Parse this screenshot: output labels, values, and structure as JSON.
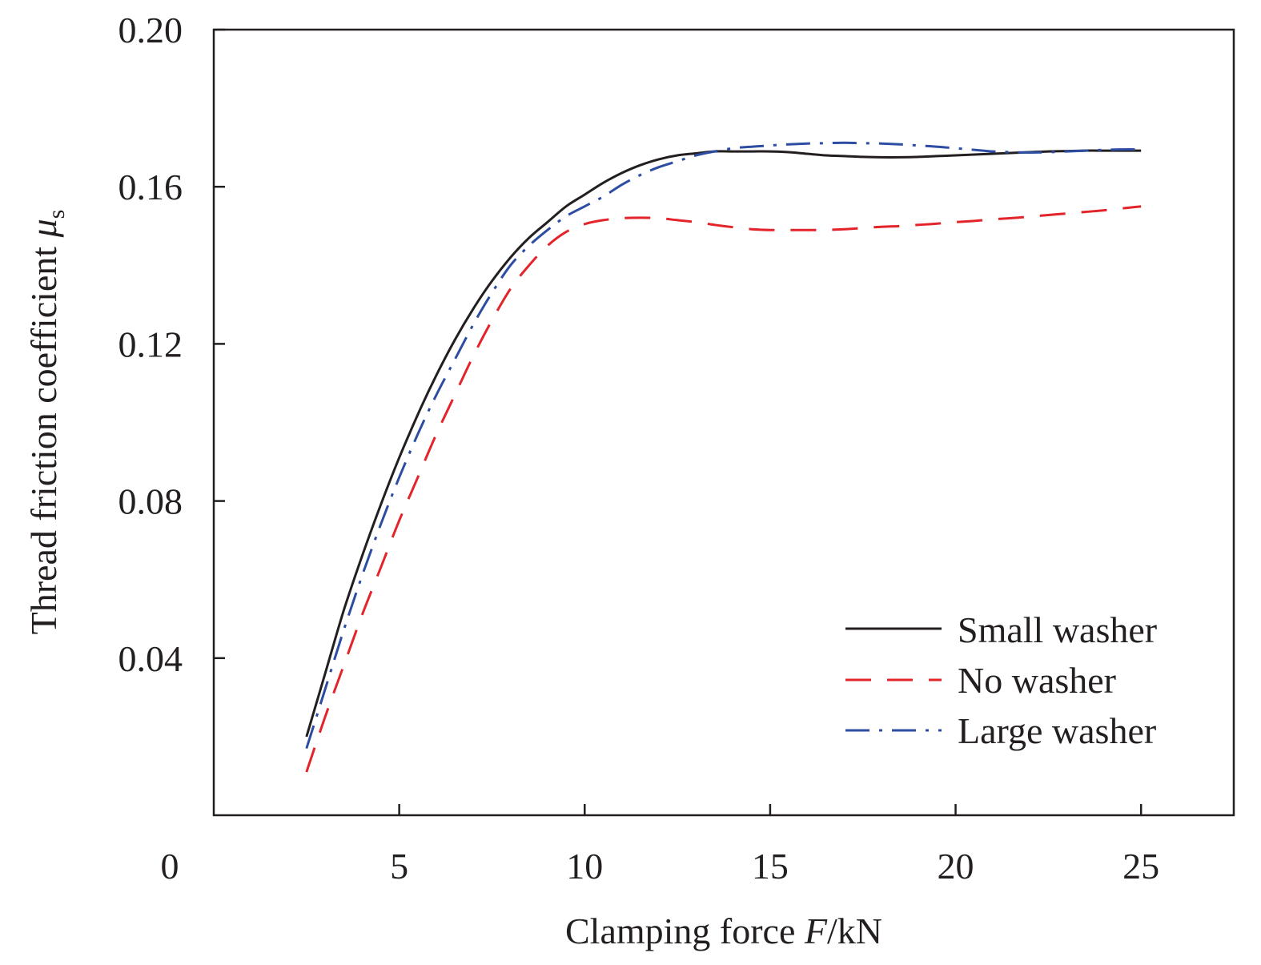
{
  "chart_data": {
    "type": "line",
    "xlabel": {
      "prefix": "Clamping force ",
      "var": "F",
      "unit": "/kN"
    },
    "ylabel": {
      "prefix": "Thread friction coefficient ",
      "var": "μ",
      "sub": "s"
    },
    "xlim": [
      0,
      27.5
    ],
    "ylim": [
      0,
      0.2
    ],
    "xticks": [
      5,
      10,
      15,
      20,
      25
    ],
    "xtick_labels": [
      "5",
      "10",
      "15",
      "20",
      "25"
    ],
    "origin_label": "0",
    "yticks": [
      0.04,
      0.08,
      0.12,
      0.16,
      0.2
    ],
    "ytick_labels": [
      "0.04",
      "0.08",
      "0.12",
      "0.16",
      "0.20"
    ],
    "grid": false,
    "legend_position": "bottom-right",
    "series": [
      {
        "name": "Small washer",
        "color": "#231f20",
        "style": "solid",
        "x": [
          2.5,
          3.0,
          3.5,
          4.0,
          4.5,
          5.0,
          5.5,
          6.0,
          6.5,
          7.0,
          7.5,
          8.0,
          8.5,
          9.0,
          9.5,
          10.0,
          10.5,
          11.0,
          11.5,
          12.0,
          12.5,
          13.0,
          13.5,
          14.0,
          14.5,
          15.0,
          15.5,
          16.0,
          16.5,
          17.0,
          17.5,
          18.0,
          18.5,
          19.0,
          19.5,
          20.0,
          20.5,
          21.0,
          21.5,
          22.0,
          22.5,
          23.0,
          23.5,
          24.0,
          24.5,
          25.0
        ],
        "y": [
          0.02,
          0.036,
          0.052,
          0.066,
          0.079,
          0.091,
          0.102,
          0.112,
          0.121,
          0.129,
          0.136,
          0.142,
          0.147,
          0.151,
          0.155,
          0.158,
          0.161,
          0.1635,
          0.1655,
          0.167,
          0.168,
          0.1685,
          0.169,
          0.169,
          0.169,
          0.169,
          0.1688,
          0.1684,
          0.168,
          0.1678,
          0.1676,
          0.1675,
          0.1675,
          0.1676,
          0.1678,
          0.168,
          0.1682,
          0.1684,
          0.1686,
          0.1688,
          0.169,
          0.1691,
          0.1692,
          0.1692,
          0.1692,
          0.1692
        ]
      },
      {
        "name": "No washer",
        "color": "#e3242b",
        "style": "dashed",
        "x": [
          2.5,
          3.0,
          3.5,
          4.0,
          4.5,
          5.0,
          5.5,
          6.0,
          6.5,
          7.0,
          7.5,
          8.0,
          8.5,
          9.0,
          9.5,
          10.0,
          10.5,
          11.0,
          11.5,
          12.0,
          12.5,
          13.0,
          13.5,
          14.0,
          14.5,
          15.0,
          15.5,
          16.0,
          16.5,
          17.0,
          17.5,
          18.0,
          18.5,
          19.0,
          19.5,
          20.0,
          20.5,
          21.0,
          21.5,
          22.0,
          22.5,
          23.0,
          23.5,
          24.0,
          24.5,
          25.0
        ],
        "y": [
          0.011,
          0.025,
          0.038,
          0.051,
          0.063,
          0.075,
          0.086,
          0.097,
          0.107,
          0.117,
          0.126,
          0.134,
          0.14,
          0.145,
          0.1485,
          0.1505,
          0.1515,
          0.152,
          0.1521,
          0.152,
          0.1515,
          0.151,
          0.1503,
          0.1497,
          0.1492,
          0.149,
          0.149,
          0.149,
          0.149,
          0.1492,
          0.1495,
          0.1498,
          0.15,
          0.1503,
          0.1506,
          0.151,
          0.1513,
          0.1517,
          0.152,
          0.1524,
          0.1528,
          0.1532,
          0.1536,
          0.154,
          0.1545,
          0.155
        ]
      },
      {
        "name": "Large washer",
        "color": "#2c4da1",
        "style": "dashdot",
        "x": [
          2.5,
          3.0,
          3.5,
          4.0,
          4.5,
          5.0,
          5.5,
          6.0,
          6.5,
          7.0,
          7.5,
          8.0,
          8.5,
          9.0,
          9.5,
          10.0,
          10.5,
          11.0,
          11.5,
          12.0,
          12.5,
          13.0,
          13.5,
          14.0,
          14.5,
          15.0,
          15.5,
          16.0,
          16.5,
          17.0,
          17.5,
          18.0,
          18.5,
          19.0,
          19.5,
          20.0,
          20.5,
          21.0,
          21.5,
          22.0,
          22.5,
          23.0,
          23.5,
          24.0,
          24.5,
          25.0
        ],
        "y": [
          0.017,
          0.032,
          0.047,
          0.061,
          0.074,
          0.086,
          0.097,
          0.107,
          0.116,
          0.125,
          0.133,
          0.14,
          0.145,
          0.149,
          0.1525,
          0.155,
          0.1575,
          0.1605,
          0.163,
          0.165,
          0.1665,
          0.168,
          0.169,
          0.1698,
          0.1702,
          0.1705,
          0.1708,
          0.171,
          0.1711,
          0.1712,
          0.1711,
          0.171,
          0.1708,
          0.1705,
          0.1702,
          0.1698,
          0.1694,
          0.169,
          0.1688,
          0.1687,
          0.1688,
          0.169,
          0.1692,
          0.1694,
          0.1695,
          0.1695
        ]
      }
    ]
  }
}
